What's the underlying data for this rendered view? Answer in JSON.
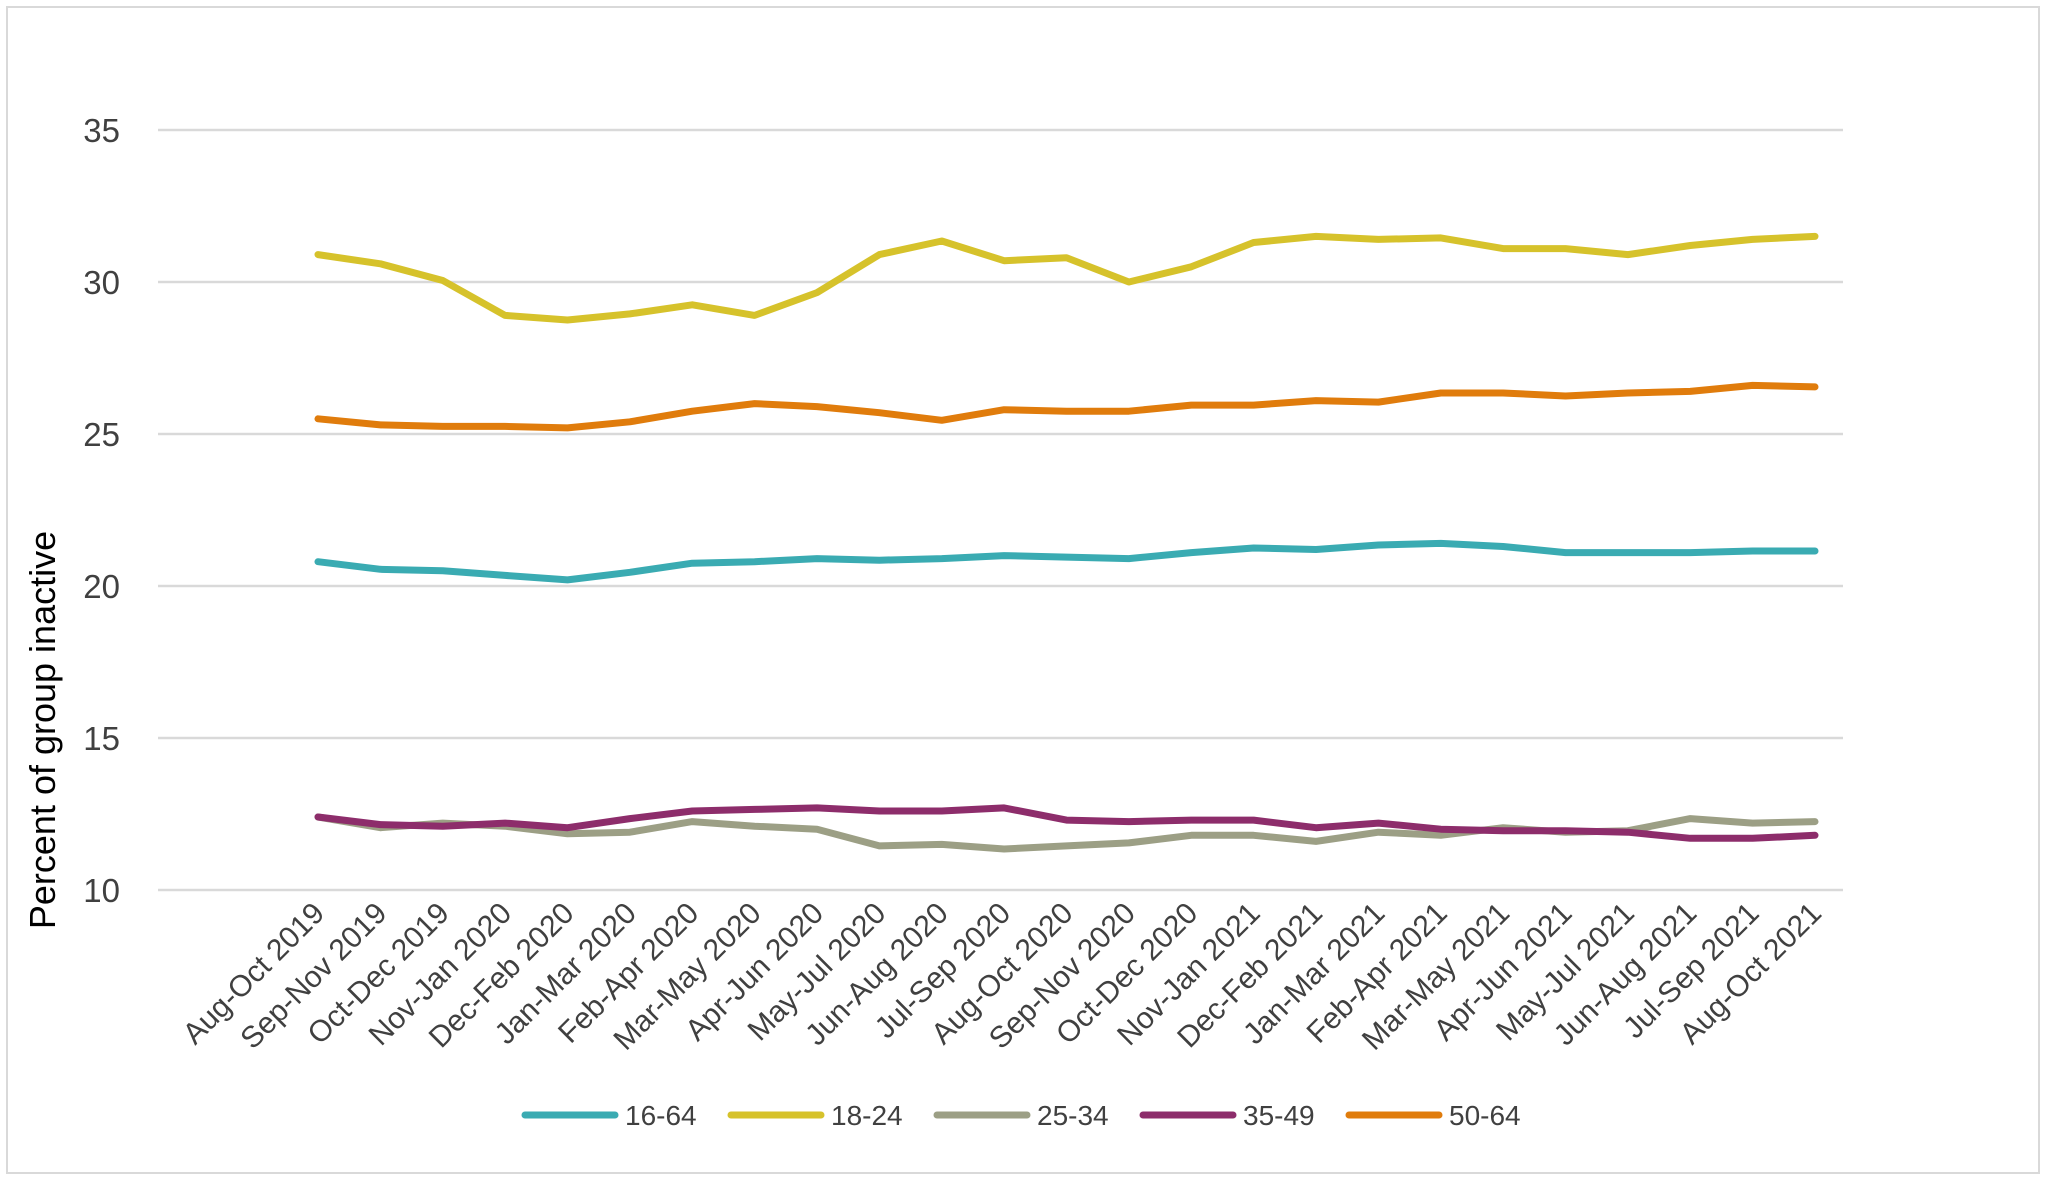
{
  "chart_data": {
    "type": "line",
    "ylabel": "Percent of group inactive",
    "ylim": [
      10,
      35
    ],
    "yticks": [
      10,
      15,
      20,
      25,
      30,
      35
    ],
    "ytick_labels": [
      "10",
      "15",
      "20",
      "25",
      "30",
      "35"
    ],
    "grid": true,
    "legend_position": "bottom",
    "categories": [
      "Aug-Oct 2019",
      "Sep-Nov 2019",
      "Oct-Dec 2019",
      "Nov-Jan 2020",
      "Dec-Feb 2020",
      "Jan-Mar 2020",
      "Feb-Apr 2020",
      "Mar-May 2020",
      "Apr-Jun 2020",
      "May-Jul 2020",
      "Jun-Aug 2020",
      "Jul-Sep 2020",
      "Aug-Oct 2020",
      "Sep-Nov 2020",
      "Oct-Dec 2020",
      "Nov-Jan 2021",
      "Dec-Feb 2021",
      "Jan-Mar 2021",
      "Feb-Apr 2021",
      "Mar-May 2021",
      "Apr-Jun 2021",
      "May-Jul 2021",
      "Jun-Aug 2021",
      "Jul-Sep 2021",
      "Aug-Oct 2021"
    ],
    "series": [
      {
        "name": "16-64",
        "color": "#3aabb2",
        "values": [
          20.8,
          20.55,
          20.5,
          20.35,
          20.2,
          20.45,
          20.75,
          20.8,
          20.9,
          20.85,
          20.9,
          21.0,
          20.95,
          20.9,
          21.1,
          21.25,
          21.2,
          21.35,
          21.4,
          21.3,
          21.1,
          21.1,
          21.1,
          21.15,
          21.15
        ]
      },
      {
        "name": "18-24",
        "color": "#d6c22b",
        "values": [
          30.9,
          30.6,
          30.05,
          28.9,
          28.75,
          28.95,
          29.25,
          28.9,
          29.65,
          30.9,
          31.35,
          30.7,
          30.8,
          30.0,
          30.5,
          31.3,
          31.5,
          31.4,
          31.45,
          31.1,
          31.1,
          30.9,
          31.2,
          31.4,
          31.5
        ]
      },
      {
        "name": "25-34",
        "color": "#9c9f85",
        "values": [
          12.4,
          12.05,
          12.2,
          12.1,
          11.85,
          11.9,
          12.25,
          12.1,
          12.0,
          11.45,
          11.5,
          11.35,
          11.45,
          11.55,
          11.8,
          11.8,
          11.6,
          11.9,
          11.8,
          12.05,
          11.9,
          11.95,
          12.35,
          12.2,
          12.25
        ]
      },
      {
        "name": "35-49",
        "color": "#8d2d6b",
        "values": [
          12.4,
          12.15,
          12.1,
          12.2,
          12.05,
          12.35,
          12.6,
          12.65,
          12.7,
          12.6,
          12.6,
          12.7,
          12.3,
          12.25,
          12.3,
          12.3,
          12.05,
          12.2,
          12.0,
          11.95,
          11.95,
          11.9,
          11.7,
          11.7,
          11.8
        ]
      },
      {
        "name": "50-64",
        "color": "#e07c0c",
        "values": [
          25.5,
          25.3,
          25.25,
          25.25,
          25.2,
          25.4,
          25.75,
          26.0,
          25.9,
          25.7,
          25.45,
          25.8,
          25.75,
          25.75,
          25.95,
          25.95,
          26.1,
          26.05,
          26.35,
          26.35,
          26.25,
          26.35,
          26.4,
          26.6,
          26.55
        ]
      }
    ]
  }
}
